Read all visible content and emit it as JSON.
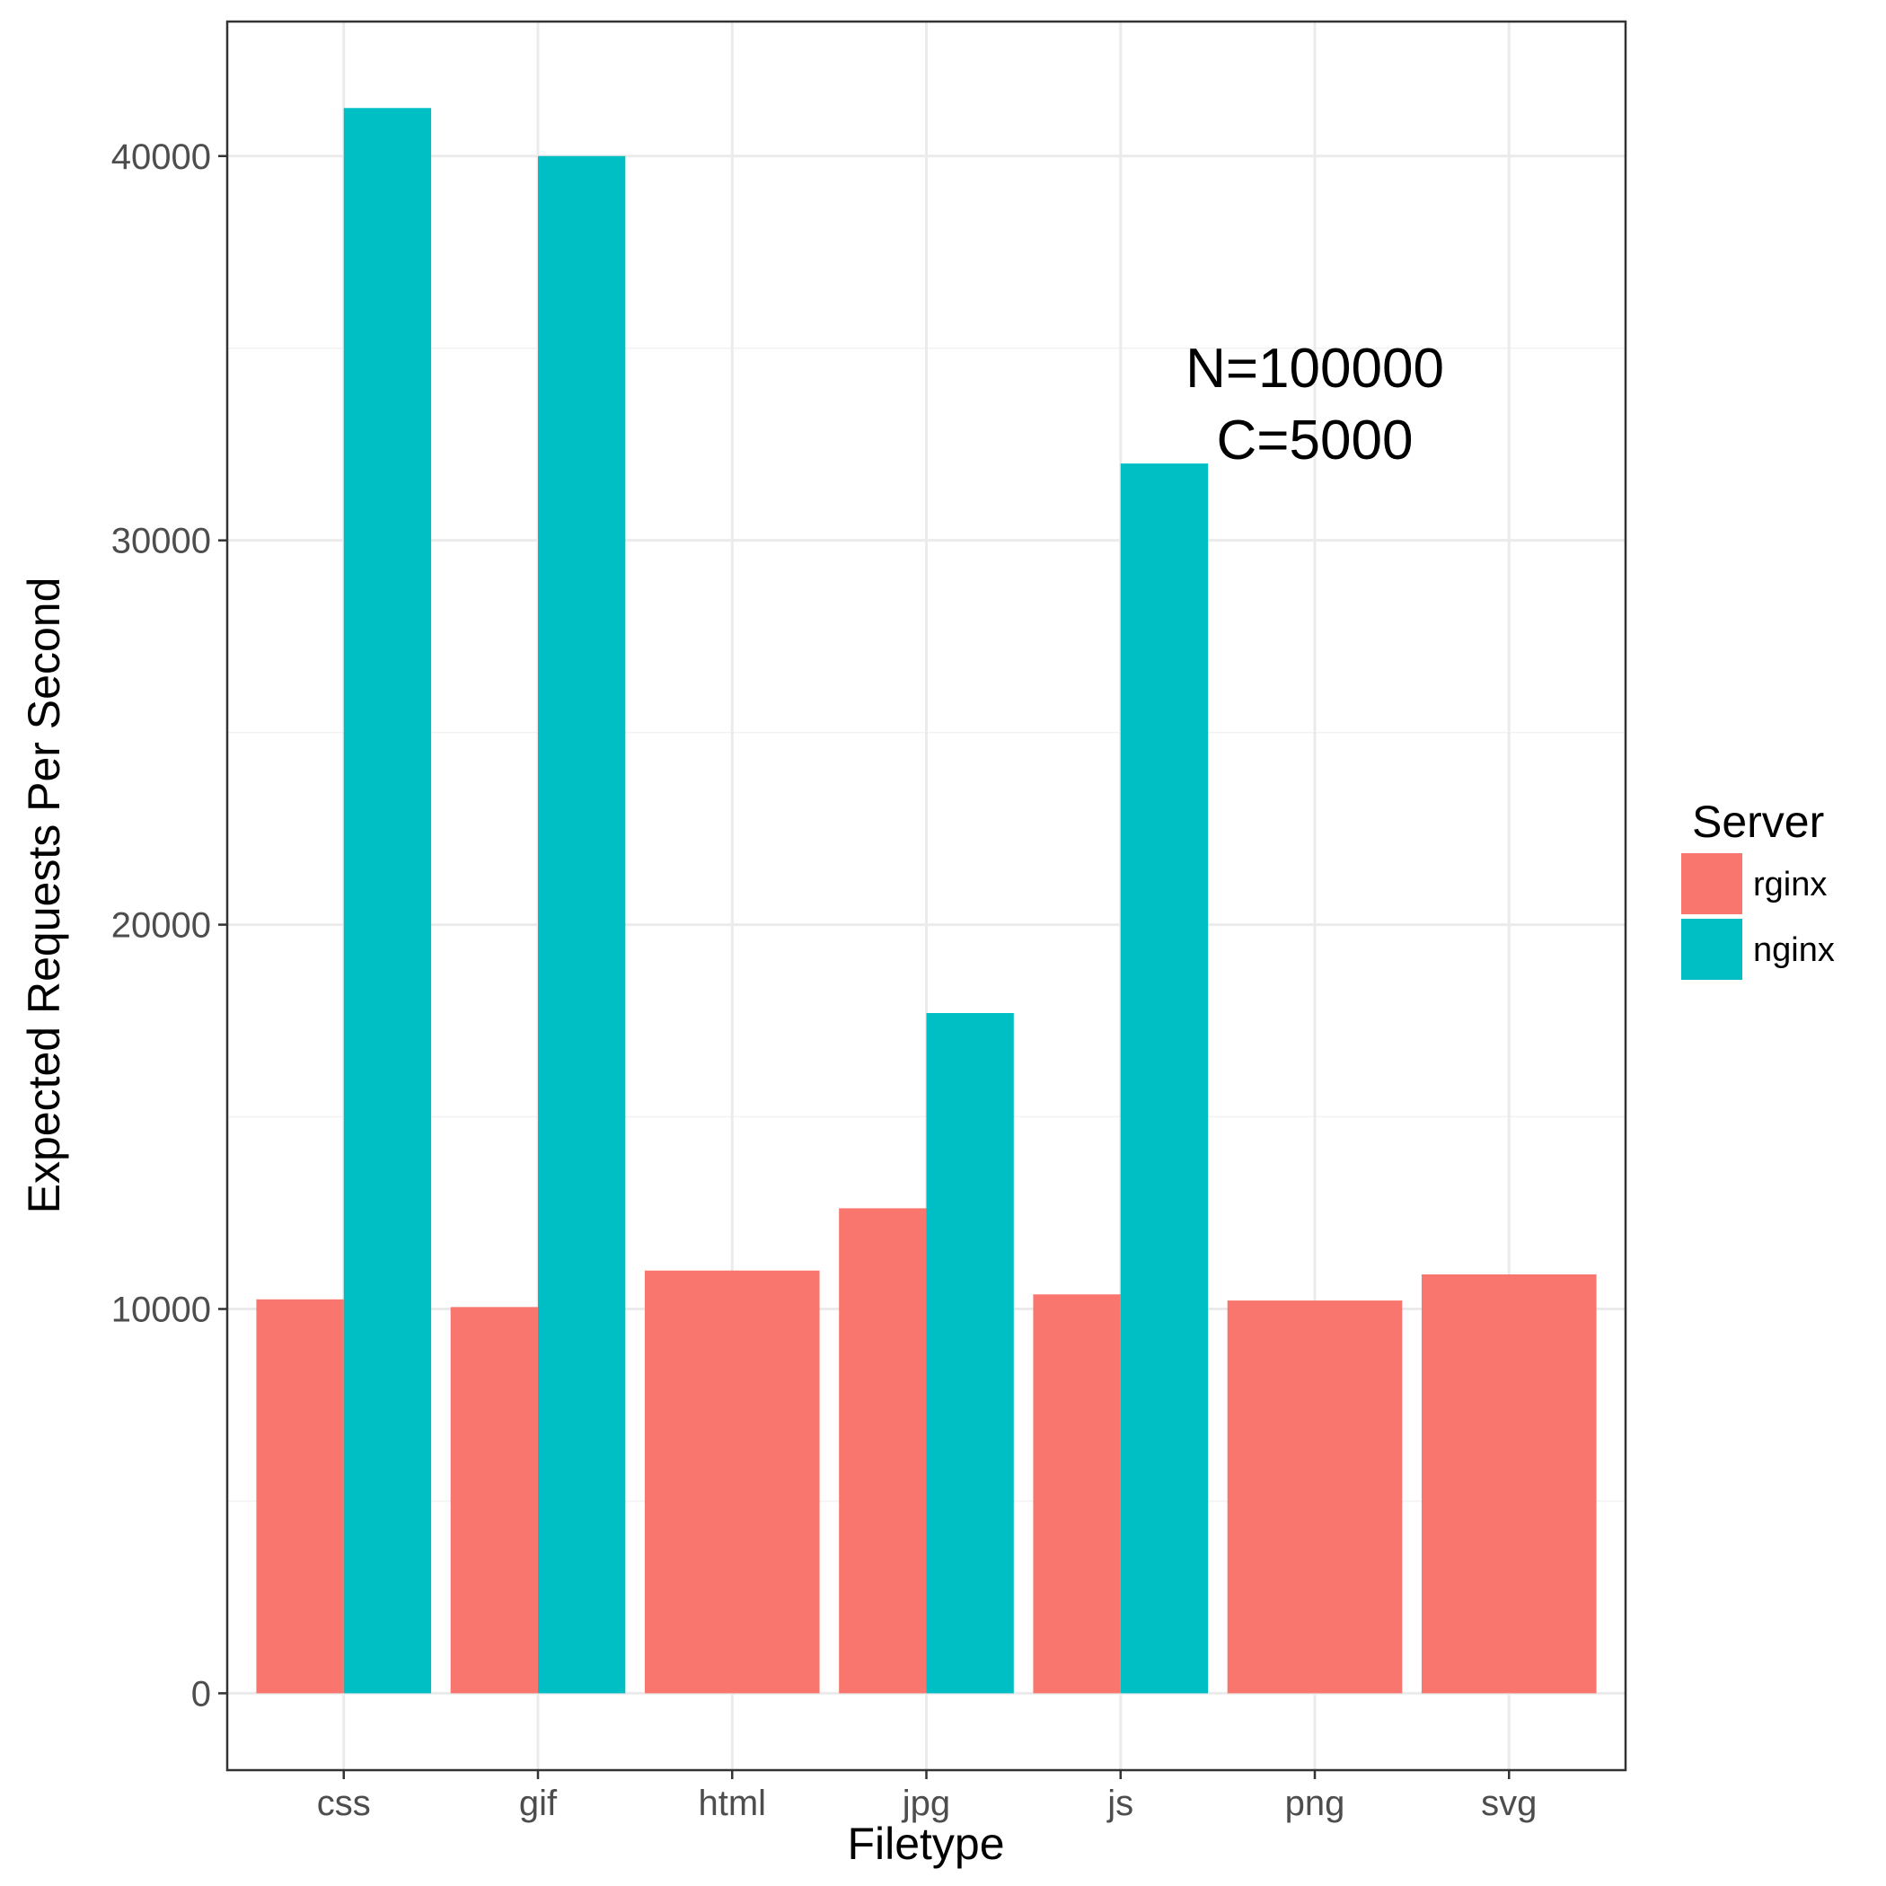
{
  "chart_data": {
    "type": "bar",
    "categories": [
      "css",
      "gif",
      "html",
      "jpg",
      "js",
      "png",
      "svg"
    ],
    "series": [
      {
        "name": "rginx",
        "color": "#F8766D",
        "values": [
          10250,
          10050,
          11000,
          12620,
          10380,
          10220,
          10900
        ]
      },
      {
        "name": "nginx",
        "color": "#00BFC4",
        "values": [
          41250,
          40000,
          null,
          17700,
          32000,
          null,
          null
        ]
      }
    ],
    "xlabel": "Filetype",
    "ylabel": "Expected Requests Per Second",
    "ylim": [
      -2000,
      43500
    ],
    "yticks": [
      0,
      10000,
      20000,
      30000,
      40000
    ],
    "ytick_labels": [
      "0",
      "10000",
      "20000",
      "30000",
      "40000"
    ],
    "yminor": [
      5000,
      15000,
      25000,
      35000
    ],
    "legend": {
      "title": "Server",
      "position": "right",
      "entries": [
        "rginx",
        "nginx"
      ]
    },
    "annotation": {
      "lines": [
        "N=100000",
        "C=5000"
      ],
      "x_category": "png",
      "y": 34500
    },
    "grid": true,
    "theme": "bw",
    "colors": {
      "grid_major": "#ebebeb",
      "grid_minor": "#f2f2f2",
      "panel_border": "#333333",
      "tick_text": "#4d4d4d"
    }
  }
}
